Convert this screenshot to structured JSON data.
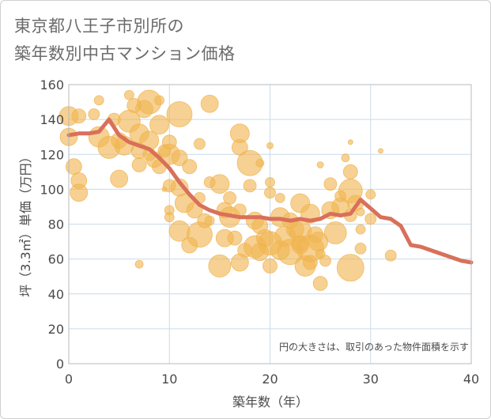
{
  "title": {
    "line1": "東京都八王子市別所の",
    "line2": "築年数別中古マンション価格"
  },
  "note": "円の大きさは、取引のあった物件面積を示す",
  "colors": {
    "bubble": "#f0b450",
    "line": "#d9705a",
    "grid": "#c9dbea",
    "plot_border": "#b8b8b8"
  },
  "chart_data": {
    "type": "scatter",
    "xlabel": "築年数（年）",
    "ylabel": "坪（3.3㎡）単価（万円）",
    "xlim": [
      0,
      40
    ],
    "ylim": [
      0,
      160
    ],
    "xticks": [
      "0",
      "10",
      "20",
      "30",
      "40"
    ],
    "yticks": [
      "0",
      "20",
      "40",
      "60",
      "80",
      "100",
      "120",
      "140",
      "160"
    ],
    "grid": true,
    "bubbles": [
      {
        "x": 0,
        "y": 142,
        "s": 12
      },
      {
        "x": 0,
        "y": 130,
        "s": 11
      },
      {
        "x": 0.5,
        "y": 113,
        "s": 10
      },
      {
        "x": 1,
        "y": 105,
        "s": 10
      },
      {
        "x": 1,
        "y": 98,
        "s": 11
      },
      {
        "x": 1,
        "y": 142,
        "s": 9
      },
      {
        "x": 2.5,
        "y": 143,
        "s": 7
      },
      {
        "x": 3,
        "y": 130,
        "s": 13
      },
      {
        "x": 3,
        "y": 151,
        "s": 6
      },
      {
        "x": 4,
        "y": 124,
        "s": 14
      },
      {
        "x": 4.5,
        "y": 140,
        "s": 8
      },
      {
        "x": 5,
        "y": 106,
        "s": 11
      },
      {
        "x": 5,
        "y": 128,
        "s": 10
      },
      {
        "x": 5.5,
        "y": 125,
        "s": 12
      },
      {
        "x": 6,
        "y": 139,
        "s": 14
      },
      {
        "x": 6,
        "y": 154,
        "s": 6
      },
      {
        "x": 6.5,
        "y": 148,
        "s": 9
      },
      {
        "x": 7,
        "y": 132,
        "s": 12
      },
      {
        "x": 7,
        "y": 122,
        "s": 10
      },
      {
        "x": 7,
        "y": 114,
        "s": 9
      },
      {
        "x": 7,
        "y": 57,
        "s": 5
      },
      {
        "x": 7.5,
        "y": 146,
        "s": 11
      },
      {
        "x": 8,
        "y": 150,
        "s": 15
      },
      {
        "x": 8,
        "y": 128,
        "s": 12
      },
      {
        "x": 8.5,
        "y": 117,
        "s": 10
      },
      {
        "x": 8,
        "y": 120,
        "s": 8
      },
      {
        "x": 9,
        "y": 137,
        "s": 12
      },
      {
        "x": 9,
        "y": 113,
        "s": 9
      },
      {
        "x": 9.5,
        "y": 122,
        "s": 8
      },
      {
        "x": 9,
        "y": 151,
        "s": 6
      },
      {
        "x": 10,
        "y": 120,
        "s": 13
      },
      {
        "x": 10,
        "y": 127,
        "s": 9
      },
      {
        "x": 10,
        "y": 102,
        "s": 8
      },
      {
        "x": 10,
        "y": 88,
        "s": 6
      },
      {
        "x": 10,
        "y": 84,
        "s": 6
      },
      {
        "x": 9.5,
        "y": 100,
        "s": 3
      },
      {
        "x": 11,
        "y": 143,
        "s": 16
      },
      {
        "x": 11,
        "y": 118,
        "s": 10
      },
      {
        "x": 11,
        "y": 101,
        "s": 11
      },
      {
        "x": 11,
        "y": 76,
        "s": 13
      },
      {
        "x": 11.5,
        "y": 92,
        "s": 12
      },
      {
        "x": 12,
        "y": 113,
        "s": 9
      },
      {
        "x": 12,
        "y": 68,
        "s": 10
      },
      {
        "x": 12.5,
        "y": 88,
        "s": 10
      },
      {
        "x": 13,
        "y": 74,
        "s": 16
      },
      {
        "x": 13,
        "y": 95,
        "s": 7
      },
      {
        "x": 13,
        "y": 126,
        "s": 7
      },
      {
        "x": 13.5,
        "y": 82,
        "s": 9
      },
      {
        "x": 14,
        "y": 149,
        "s": 11
      },
      {
        "x": 14,
        "y": 104,
        "s": 7
      },
      {
        "x": 14,
        "y": 82,
        "s": 6
      },
      {
        "x": 15,
        "y": 56,
        "s": 14
      },
      {
        "x": 15,
        "y": 103,
        "s": 12
      },
      {
        "x": 15.5,
        "y": 72,
        "s": 11
      },
      {
        "x": 15.5,
        "y": 88,
        "s": 10
      },
      {
        "x": 16,
        "y": 84,
        "s": 13
      },
      {
        "x": 16,
        "y": 95,
        "s": 8
      },
      {
        "x": 16.5,
        "y": 72,
        "s": 9
      },
      {
        "x": 17,
        "y": 132,
        "s": 12
      },
      {
        "x": 17,
        "y": 124,
        "s": 10
      },
      {
        "x": 17,
        "y": 58,
        "s": 11
      },
      {
        "x": 17.5,
        "y": 65,
        "s": 9
      },
      {
        "x": 17,
        "y": 88,
        "s": 8
      },
      {
        "x": 18,
        "y": 115,
        "s": 16
      },
      {
        "x": 18,
        "y": 102,
        "s": 8
      },
      {
        "x": 18.5,
        "y": 82,
        "s": 11
      },
      {
        "x": 18.5,
        "y": 67,
        "s": 14
      },
      {
        "x": 19,
        "y": 79,
        "s": 10
      },
      {
        "x": 19,
        "y": 115,
        "s": 5
      },
      {
        "x": 19.5,
        "y": 72,
        "s": 11
      },
      {
        "x": 20,
        "y": 69,
        "s": 15
      },
      {
        "x": 20,
        "y": 98,
        "s": 7
      },
      {
        "x": 20,
        "y": 104,
        "s": 6
      },
      {
        "x": 20,
        "y": 56,
        "s": 9
      },
      {
        "x": 20,
        "y": 125,
        "s": 4
      },
      {
        "x": 21,
        "y": 84,
        "s": 12
      },
      {
        "x": 21,
        "y": 95,
        "s": 6
      },
      {
        "x": 21.5,
        "y": 73,
        "s": 13
      },
      {
        "x": 22,
        "y": 82,
        "s": 10
      },
      {
        "x": 22,
        "y": 64,
        "s": 16
      },
      {
        "x": 22.5,
        "y": 77,
        "s": 11
      },
      {
        "x": 23,
        "y": 76,
        "s": 14
      },
      {
        "x": 23,
        "y": 92,
        "s": 12
      },
      {
        "x": 23,
        "y": 69,
        "s": 10
      },
      {
        "x": 23.5,
        "y": 56,
        "s": 13
      },
      {
        "x": 24,
        "y": 66,
        "s": 17
      },
      {
        "x": 24,
        "y": 86,
        "s": 12
      },
      {
        "x": 24,
        "y": 58,
        "s": 9
      },
      {
        "x": 24.5,
        "y": 74,
        "s": 10
      },
      {
        "x": 25,
        "y": 46,
        "s": 9
      },
      {
        "x": 25,
        "y": 63,
        "s": 6
      },
      {
        "x": 25,
        "y": 114,
        "s": 4
      },
      {
        "x": 25.5,
        "y": 59,
        "s": 7
      },
      {
        "x": 26,
        "y": 88,
        "s": 11
      },
      {
        "x": 26,
        "y": 103,
        "s": 8
      },
      {
        "x": 26.5,
        "y": 75,
        "s": 14
      },
      {
        "x": 27,
        "y": 90,
        "s": 11
      },
      {
        "x": 27,
        "y": 96,
        "s": 7
      },
      {
        "x": 27.5,
        "y": 118,
        "s": 5
      },
      {
        "x": 28,
        "y": 99,
        "s": 15
      },
      {
        "x": 28,
        "y": 55,
        "s": 17
      },
      {
        "x": 28,
        "y": 110,
        "s": 9
      },
      {
        "x": 28,
        "y": 85,
        "s": 8
      },
      {
        "x": 28.5,
        "y": 92,
        "s": 10
      },
      {
        "x": 28,
        "y": 127,
        "s": 3
      },
      {
        "x": 29,
        "y": 77,
        "s": 6
      },
      {
        "x": 29,
        "y": 66,
        "s": 7
      },
      {
        "x": 29,
        "y": 87,
        "s": 5
      },
      {
        "x": 30,
        "y": 97,
        "s": 6
      },
      {
        "x": 30,
        "y": 83,
        "s": 7
      },
      {
        "x": 31,
        "y": 122,
        "s": 3
      },
      {
        "x": 32,
        "y": 62,
        "s": 7
      },
      {
        "x": 23,
        "y": 68,
        "s": 11
      },
      {
        "x": 19,
        "y": 64,
        "s": 11
      },
      {
        "x": 21,
        "y": 65,
        "s": 12
      },
      {
        "x": 24.8,
        "y": 70,
        "s": 12
      }
    ],
    "line": {
      "x": [
        0,
        1,
        2,
        3,
        4,
        5,
        6,
        7,
        8,
        9,
        10,
        11,
        12,
        13,
        14,
        15,
        16,
        17,
        18,
        19,
        20,
        21,
        22,
        23,
        24,
        25,
        26,
        27,
        28,
        29,
        30,
        31,
        32,
        33,
        34,
        35,
        36,
        37,
        38,
        39,
        40
      ],
      "y": [
        131,
        132,
        132,
        133,
        140,
        131,
        127,
        125,
        123,
        118,
        112,
        104,
        97,
        91,
        88,
        86,
        85,
        84,
        84,
        84,
        83,
        83,
        82,
        83,
        82,
        83,
        86,
        85,
        86,
        94,
        89,
        84,
        83,
        79,
        68,
        67,
        65,
        63,
        61,
        59,
        58
      ]
    }
  }
}
